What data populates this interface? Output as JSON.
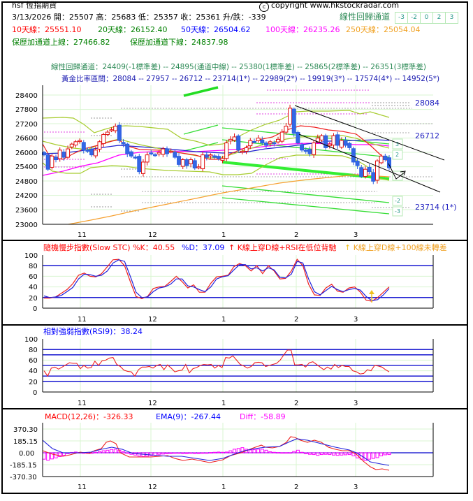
{
  "header": {
    "title": "hsf 恆指期貨",
    "copyright": "copyright www.hkstockradar.com",
    "date": "3/13/2026",
    "open_label": "開：",
    "open": "25507",
    "high_label": "高：",
    "high": "25683",
    "low_label": "低：",
    "low": "25357",
    "close_label": "收：",
    "close": "25361",
    "change_label": "升/跌：",
    "change": "-339",
    "channel_title": "線性回歸通道",
    "channel_buttons": [
      "-3",
      "-2",
      "0",
      "2",
      "3"
    ]
  },
  "moving_averages": {
    "ma10_label": "10天線：",
    "ma10": "25551.10",
    "ma10_color": "#ff0000",
    "ma20_label": "20天線：",
    "ma20": "26152.40",
    "ma20_color": "#008000",
    "ma50_label": "50天線：",
    "ma50": "26504.62",
    "ma50_color": "#0000ff",
    "ma100_label": "100天線：",
    "ma100": "26235.26",
    "ma100_color": "#ff00ff",
    "ma250_label": "250天線：",
    "ma250": "25054.04",
    "ma250_color": "#f0a020"
  },
  "bollinger": {
    "upper_label": "保歷加通道上線：",
    "upper": "27466.82",
    "lower_label": "保歷加通道下線：",
    "lower": "24837.98"
  },
  "regression": {
    "label": "線性回歸通道：",
    "text": "24409(-1標準差) -- 24895(通道中線) -- 25380(1標準差) -- 25865(2標準差) -- 26351(3標準差)"
  },
  "fibonacci": {
    "label": "黃金比率區間：",
    "text": "28084 -- 27957 -- 26712 -- 23714(1*) -- 22989(2*) -- 19919(3*) -- 17574(4*) -- 14952(5*)",
    "right_labels": [
      "28084",
      "26712",
      "23714 (1*)"
    ]
  },
  "stc": {
    "title": "隨機慢步指數(Slow STC) %K：40.55",
    "d_label": "%D：37.09",
    "signal1": "K線上穿D線+RSI在低位背馳",
    "signal2": "K線上穿D線+100線未轉差"
  },
  "rsi": {
    "title": "相對強弱指數(RSI9)：38.24"
  },
  "macd": {
    "macd_label": "MACD(12,26)：-326.33",
    "ema_label": "EMA(9)：-267.44",
    "diff_label": "Diff：-58.89"
  },
  "chart_data": [
    {
      "type": "candlestick",
      "title": "hsf 恆指期貨",
      "x_tick_labels": [
        "11",
        "12",
        "1",
        "2",
        "3"
      ],
      "y_ticks": [
        28400,
        27800,
        27200,
        26600,
        26000,
        25400,
        24800,
        24200,
        23600,
        23000
      ],
      "ylim": [
        23000,
        28400
      ],
      "last_bar": {
        "date": "3/13/2026",
        "open": 25507,
        "high": 25683,
        "low": 25357,
        "close": 25361,
        "change": -339
      },
      "series": [
        {
          "name": "10天線",
          "last": 25551.1
        },
        {
          "name": "20天線",
          "last": 26152.4
        },
        {
          "name": "50天線",
          "last": 26504.62
        },
        {
          "name": "100天線",
          "last": 26235.26
        },
        {
          "name": "250天線",
          "last": 25054.04
        },
        {
          "name": "保歷加通道上線",
          "last": 27466.82
        },
        {
          "name": "保歷加通道下線",
          "last": 24837.98
        }
      ],
      "regression_channel": {
        "-1": 24409,
        "mid": 24895,
        "1": 25380,
        "2": 25865,
        "3": 26351
      },
      "fibonacci_levels": [
        28084,
        27957,
        26712,
        23714,
        22989,
        19919,
        17574,
        14952
      ],
      "closes_approx": [
        25900,
        25300,
        25850,
        25700,
        26100,
        25800,
        26150,
        26350,
        26450,
        26500,
        26100,
        26050,
        25900,
        26100,
        26450,
        26750,
        26850,
        26950,
        27100,
        26500,
        26350,
        25950,
        25850,
        25800,
        25200,
        25600,
        25900,
        25950,
        25900,
        26000,
        26150,
        25950,
        26050,
        25800,
        25500,
        25700,
        25450,
        25700,
        25350,
        25400,
        25900,
        25800,
        25900,
        25800,
        25750,
        25750,
        26400,
        26550,
        26650,
        26100,
        26050,
        26200,
        26500,
        26450,
        26600,
        26400,
        26300,
        26450,
        26400,
        26550,
        26850,
        27100,
        27850,
        26800,
        26400,
        26100,
        26050,
        25950,
        26400,
        26600,
        26700,
        26200,
        26350,
        26700,
        26300,
        26500,
        26300,
        26200,
        25600,
        25450,
        25000,
        25300,
        25200,
        24800,
        25650,
        25850,
        25700,
        25361
      ]
    },
    {
      "type": "line",
      "title": "隨機慢步指數(Slow STC)",
      "ylim": [
        0,
        100
      ],
      "y_ticks": [
        100,
        80,
        60,
        40,
        20,
        0
      ],
      "reference_lines": [
        80,
        20
      ],
      "series": [
        {
          "name": "%K",
          "last": 40.55,
          "values": [
            19,
            19,
            21,
            28,
            35,
            46,
            62,
            66,
            60,
            59,
            65,
            78,
            91,
            92,
            80,
            50,
            22,
            18,
            22,
            37,
            40,
            41,
            50,
            60,
            50,
            38,
            44,
            30,
            30,
            47,
            59,
            60,
            62,
            78,
            84,
            80,
            70,
            80,
            65,
            80,
            70,
            55,
            56,
            70,
            92,
            80,
            45,
            25,
            24,
            38,
            45,
            32,
            30,
            38,
            40,
            30,
            15,
            13,
            20,
            30,
            40
          ]
        },
        {
          "name": "%D",
          "last": 37.09,
          "values": [
            23,
            20,
            21,
            24,
            31,
            39,
            55,
            64,
            63,
            60,
            62,
            70,
            85,
            91,
            88,
            60,
            30,
            20,
            21,
            31,
            38,
            40,
            45,
            55,
            55,
            42,
            40,
            35,
            31,
            40,
            55,
            59,
            61,
            72,
            82,
            82,
            74,
            76,
            70,
            76,
            72,
            58,
            57,
            64,
            88,
            85,
            55,
            31,
            25,
            33,
            41,
            35,
            31,
            35,
            37,
            34,
            22,
            14,
            16,
            25,
            37
          ]
        }
      ]
    },
    {
      "type": "line",
      "title": "相對強弱指數(RSI9)",
      "ylim": [
        0,
        100
      ],
      "y_ticks": [
        100,
        80,
        60,
        40,
        20,
        0
      ],
      "reference_lines": [
        80,
        70,
        50,
        30,
        20
      ],
      "series": [
        {
          "name": "RSI9",
          "last": 38.24,
          "values": [
            40,
            30,
            45,
            47,
            43,
            47,
            51,
            55,
            54,
            54,
            44,
            50,
            45,
            46,
            58,
            50,
            59,
            60,
            64,
            65,
            52,
            48,
            41,
            39,
            38,
            30,
            42,
            47,
            47,
            48,
            45,
            50,
            52,
            42,
            51,
            45,
            38,
            40,
            41,
            52,
            36,
            44,
            46,
            50,
            52,
            51,
            52,
            45,
            50,
            46,
            65,
            64,
            68,
            60,
            52,
            49,
            45,
            48,
            55,
            56,
            55,
            48,
            50,
            52,
            54,
            60,
            70,
            79,
            79,
            51,
            51,
            52,
            47,
            55,
            57,
            52,
            47,
            42,
            47,
            43,
            52,
            46,
            50,
            48,
            48,
            40,
            38,
            34,
            35,
            42,
            40,
            50,
            49,
            47,
            42,
            38
          ]
        }
      ]
    },
    {
      "type": "bar_line",
      "title": "MACD",
      "ylim": [
        -370.3,
        370.3
      ],
      "y_ticks": [
        370.3,
        185.15,
        0.0,
        -185.15,
        -370.3
      ],
      "series": [
        {
          "name": "MACD(12,26)",
          "last": -326.33
        },
        {
          "name": "EMA(9)",
          "last": -267.44
        },
        {
          "name": "Diff",
          "last": -58.89
        }
      ]
    }
  ]
}
